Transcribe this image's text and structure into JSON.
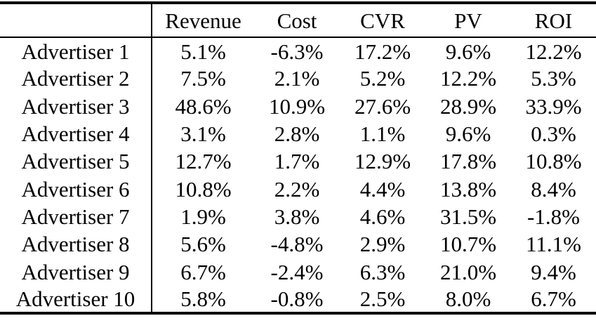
{
  "chart_data": {
    "type": "table",
    "corner_label": "",
    "columns": [
      "Revenue",
      "Cost",
      "CVR",
      "PV",
      "ROI"
    ],
    "rows": [
      {
        "label": "Advertiser 1",
        "values": [
          "5.1%",
          "-6.3%",
          "17.2%",
          "9.6%",
          "12.2%"
        ]
      },
      {
        "label": "Advertiser 2",
        "values": [
          "7.5%",
          "2.1%",
          "5.2%",
          "12.2%",
          "5.3%"
        ]
      },
      {
        "label": "Advertiser 3",
        "values": [
          "48.6%",
          "10.9%",
          "27.6%",
          "28.9%",
          "33.9%"
        ]
      },
      {
        "label": "Advertiser 4",
        "values": [
          "3.1%",
          "2.8%",
          "1.1%",
          "9.6%",
          "0.3%"
        ]
      },
      {
        "label": "Advertiser 5",
        "values": [
          "12.7%",
          "1.7%",
          "12.9%",
          "17.8%",
          "10.8%"
        ]
      },
      {
        "label": "Advertiser 6",
        "values": [
          "10.8%",
          "2.2%",
          "4.4%",
          "13.8%",
          "8.4%"
        ]
      },
      {
        "label": "Advertiser 7",
        "values": [
          "1.9%",
          "3.8%",
          "4.6%",
          "31.5%",
          "-1.8%"
        ]
      },
      {
        "label": "Advertiser 8",
        "values": [
          "5.6%",
          "-4.8%",
          "2.9%",
          "10.7%",
          "11.1%"
        ]
      },
      {
        "label": "Advertiser 9",
        "values": [
          "6.7%",
          "-2.4%",
          "6.3%",
          "21.0%",
          "9.4%"
        ]
      },
      {
        "label": "Advertiser 10",
        "values": [
          "5.8%",
          "-0.8%",
          "2.5%",
          "8.0%",
          "6.7%"
        ]
      }
    ]
  },
  "style": {
    "text_color": "#000000",
    "background_color": "#ffffff",
    "rule_color": "#000000"
  }
}
